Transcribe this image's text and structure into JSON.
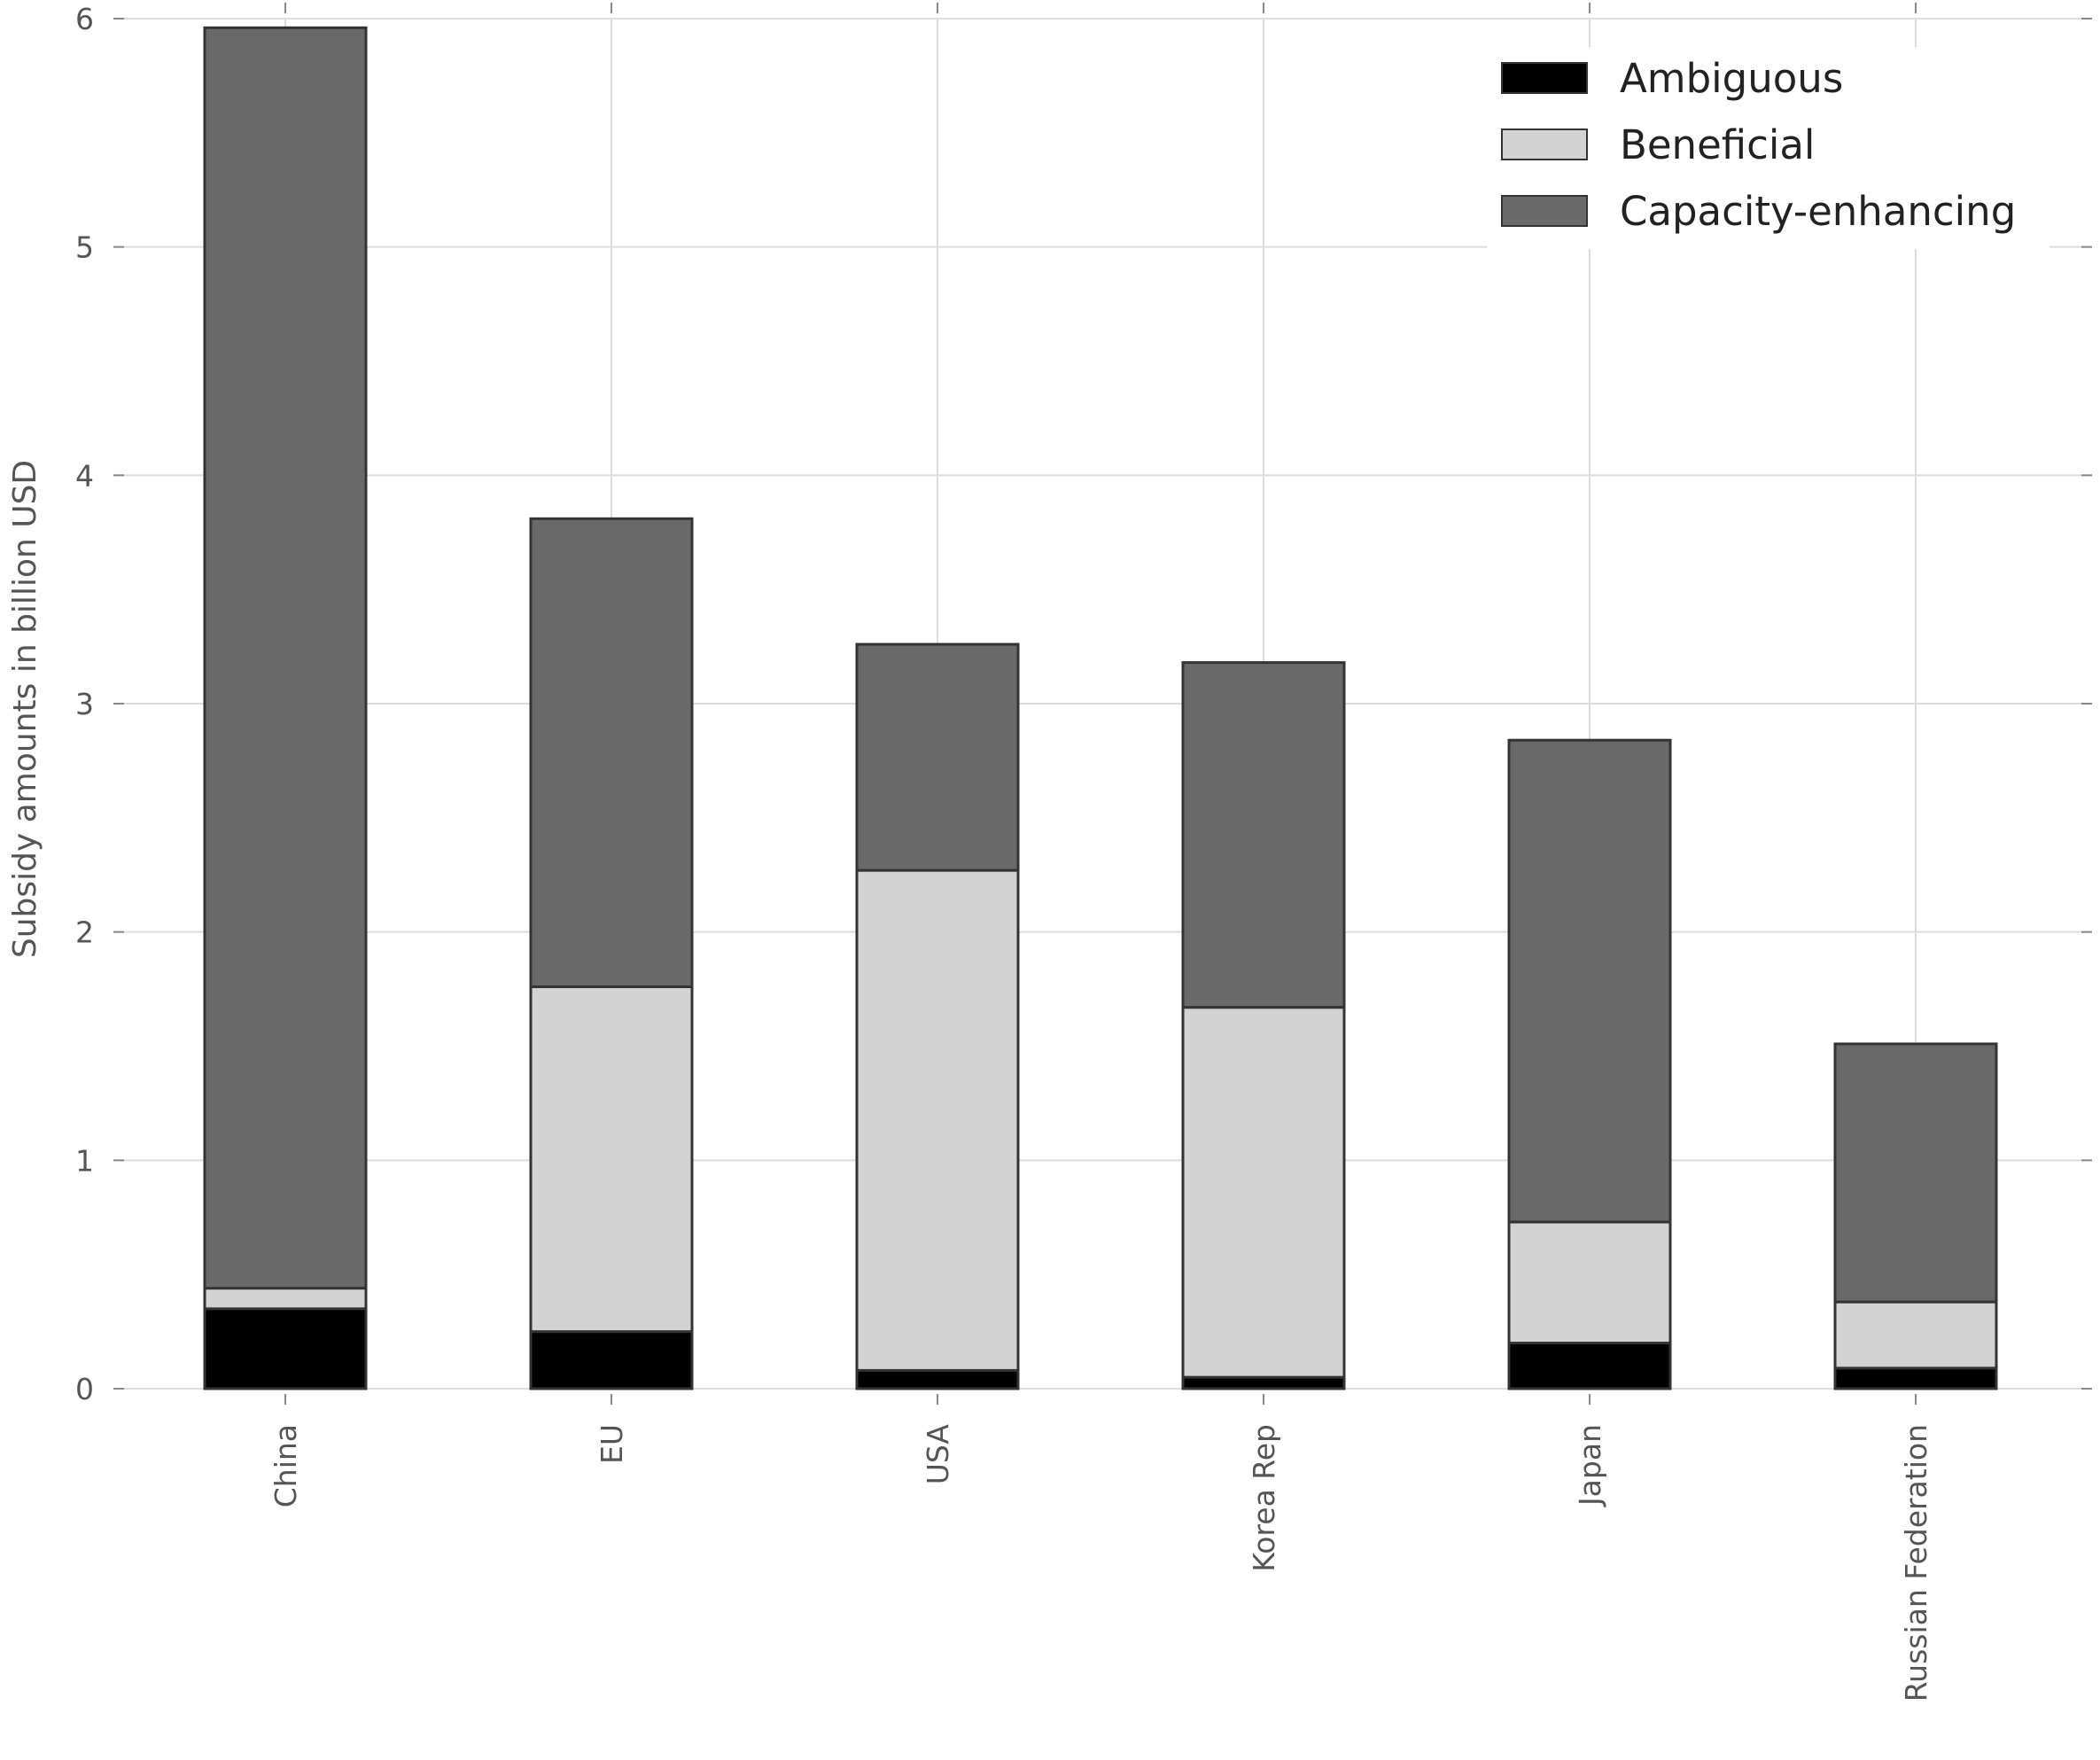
{
  "chart_data": {
    "type": "bar",
    "stacked": true,
    "title": "",
    "xlabel": "",
    "ylabel": "Subsidy amounts in billion USD",
    "ylim": [
      0,
      6
    ],
    "yticks": [
      "0",
      "1",
      "2",
      "3",
      "4",
      "5",
      "6"
    ],
    "grid": true,
    "legend_position": "top-right",
    "categories": [
      "China",
      "EU",
      "USA",
      "Korea Rep",
      "Japan",
      "Russian Federation"
    ],
    "series": [
      {
        "name": "Ambiguous",
        "color": "#000000",
        "values": [
          0.35,
          0.25,
          0.08,
          0.05,
          0.2,
          0.09
        ]
      },
      {
        "name": "Beneficial",
        "color": "#d3d3d3",
        "values": [
          0.09,
          1.51,
          2.19,
          1.62,
          0.53,
          0.29
        ]
      },
      {
        "name": "Capacity-enhancing",
        "color": "#696969",
        "values": [
          5.52,
          2.05,
          0.99,
          1.51,
          2.11,
          1.13
        ]
      }
    ]
  }
}
